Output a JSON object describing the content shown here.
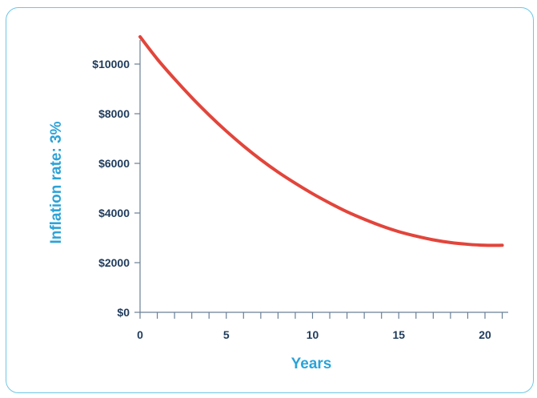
{
  "chart_data": {
    "type": "line",
    "title": "",
    "xlabel": "Years",
    "ylabel": "Inflation rate: 3%",
    "xlim": [
      0,
      21
    ],
    "ylim": [
      0,
      10000
    ],
    "x_ticks": [
      0,
      5,
      10,
      15,
      20
    ],
    "y_ticks": [
      0,
      2000,
      4000,
      6000,
      8000,
      10000
    ],
    "y_tick_labels": [
      "$0",
      "$2000",
      "$4000",
      "$6000",
      "$8000",
      "$10000"
    ],
    "grid": false,
    "legend": "none",
    "line_color": "#e2453b",
    "series": [
      {
        "x": [
          0,
          1,
          2,
          3,
          4,
          5,
          6,
          7,
          8,
          9,
          10,
          11,
          12,
          13,
          14,
          15,
          16,
          17,
          18,
          19,
          20,
          21
        ],
        "values": [
          11100,
          10200,
          9400,
          8650,
          7950,
          7300,
          6700,
          6150,
          5650,
          5200,
          4780,
          4400,
          4050,
          3750,
          3480,
          3250,
          3070,
          2920,
          2810,
          2740,
          2700,
          2700
        ]
      }
    ]
  }
}
